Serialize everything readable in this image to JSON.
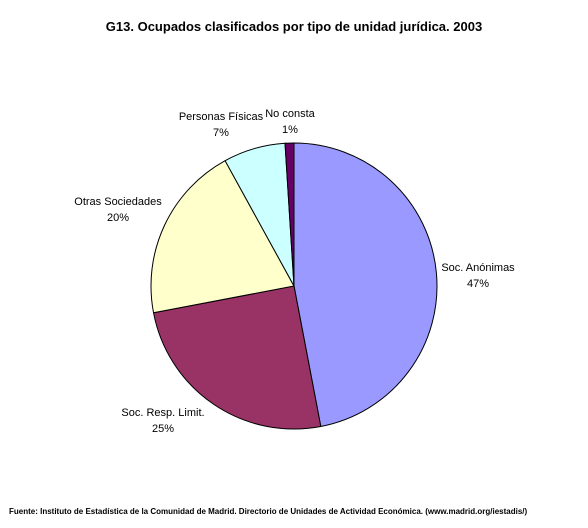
{
  "chart_data": {
    "type": "pie",
    "title": "G13. Ocupados clasificados por tipo de unidad jurídica. 2003",
    "slices": [
      {
        "label": "Soc. Anónimas",
        "value": 47,
        "value_label": "47%",
        "color": "#9999FF"
      },
      {
        "label": "Soc. Resp. Limit.",
        "value": 25,
        "value_label": "25%",
        "color": "#993366"
      },
      {
        "label": "Otras Sociedades",
        "value": 20,
        "value_label": "20%",
        "color": "#FFFFCC"
      },
      {
        "label": "Personas Físicas",
        "value": 7,
        "value_label": "7%",
        "color": "#CCFFFF"
      },
      {
        "label": "No consta",
        "value": 1,
        "value_label": "1%",
        "color": "#660066"
      }
    ],
    "legend": "none",
    "start": "top, clockwise"
  },
  "source": "Fuente: Instituto de Estadística de la Comunidad de Madrid. Directorio de Unidades de Actividad Económica. (www.madrid.org/iestadis/)"
}
